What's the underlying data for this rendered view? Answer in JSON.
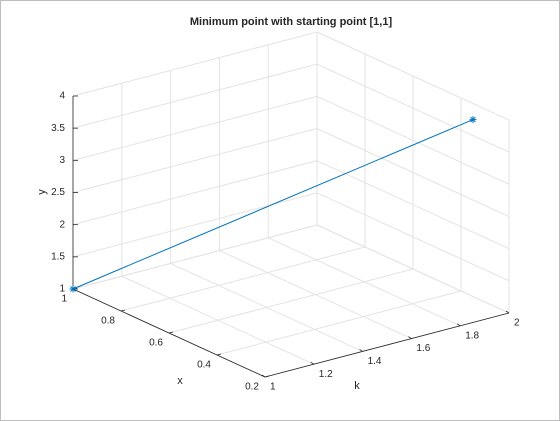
{
  "chart_data": {
    "type": "line3d",
    "title": "Minimum point with starting point [1,1]",
    "xlabel": "x",
    "klabel": "k",
    "ylabel": "y",
    "series": [
      {
        "color": "#0072bd",
        "k": [
          1,
          2
        ],
        "x": [
          1,
          0.35
        ],
        "y": [
          1,
          3.75
        ]
      }
    ],
    "klim": [
      1,
      2
    ],
    "kticks": [
      1,
      1.2,
      1.4,
      1.6,
      1.8,
      2
    ],
    "xlim": [
      0.2,
      1
    ],
    "xticks": [
      0.2,
      0.4,
      0.6,
      0.8,
      1
    ],
    "ylim": [
      1,
      4
    ],
    "yticks": [
      1,
      1.5,
      2,
      2.5,
      3,
      3.5,
      4
    ],
    "grid": true
  }
}
